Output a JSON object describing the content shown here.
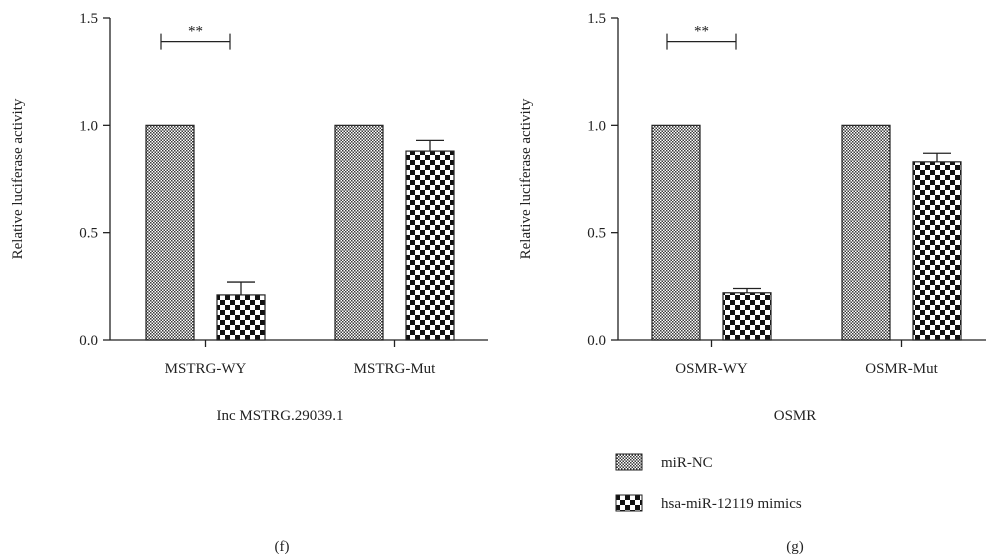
{
  "panels": [
    {
      "id": "f",
      "panel_label": "(f)",
      "group_title": "Inc MSTRG.29039.1",
      "ylabel": "Relative luciferase activity",
      "significance": "**"
    },
    {
      "id": "g",
      "panel_label": "(g)",
      "group_title": "OSMR",
      "ylabel": "Relative luciferase activity",
      "significance": "**"
    }
  ],
  "legend": {
    "items": [
      {
        "label": "miR-NC",
        "pattern": "fine-check"
      },
      {
        "label": "hsa-miR-12119 mimics",
        "pattern": "coarse-check"
      }
    ]
  },
  "colors": {
    "ink": "#222222",
    "background": "#ffffff"
  },
  "chart_data": [
    {
      "type": "bar",
      "categories": [
        "MSTRG-WY",
        "MSTRG-Mut"
      ],
      "series": [
        {
          "name": "miR-NC",
          "values": [
            1.0,
            1.0
          ],
          "errors": [
            0,
            0
          ]
        },
        {
          "name": "hsa-miR-12119 mimics",
          "values": [
            0.21,
            0.88
          ],
          "errors": [
            0.06,
            0.05
          ]
        }
      ],
      "title": "",
      "xlabel": "Inc MSTRG.29039.1",
      "ylabel": "Relative luciferase activity",
      "ylim": [
        0,
        1.5
      ],
      "yticks": [
        0.0,
        0.5,
        1.0,
        1.5
      ],
      "ytick_labels": [
        "0.0",
        "0.5",
        "1.0",
        "1.5"
      ],
      "significance": {
        "between": [
          "MSTRG-WY:miR-NC",
          "MSTRG-WY:hsa-miR-12119 mimics"
        ],
        "label": "**"
      }
    },
    {
      "type": "bar",
      "categories": [
        "OSMR-WY",
        "OSMR-Mut"
      ],
      "series": [
        {
          "name": "miR-NC",
          "values": [
            1.0,
            1.0
          ],
          "errors": [
            0,
            0
          ]
        },
        {
          "name": "hsa-miR-12119 mimics",
          "values": [
            0.22,
            0.83
          ],
          "errors": [
            0.02,
            0.04
          ]
        }
      ],
      "title": "",
      "xlabel": "OSMR",
      "ylabel": "Relative luciferase activity",
      "ylim": [
        0,
        1.5
      ],
      "yticks": [
        0.0,
        0.5,
        1.0,
        1.5
      ],
      "ytick_labels": [
        "0.0",
        "0.5",
        "1.0",
        "1.5"
      ],
      "significance": {
        "between": [
          "OSMR-WY:miR-NC",
          "OSMR-WY:hsa-miR-12119 mimics"
        ],
        "label": "**"
      }
    }
  ]
}
